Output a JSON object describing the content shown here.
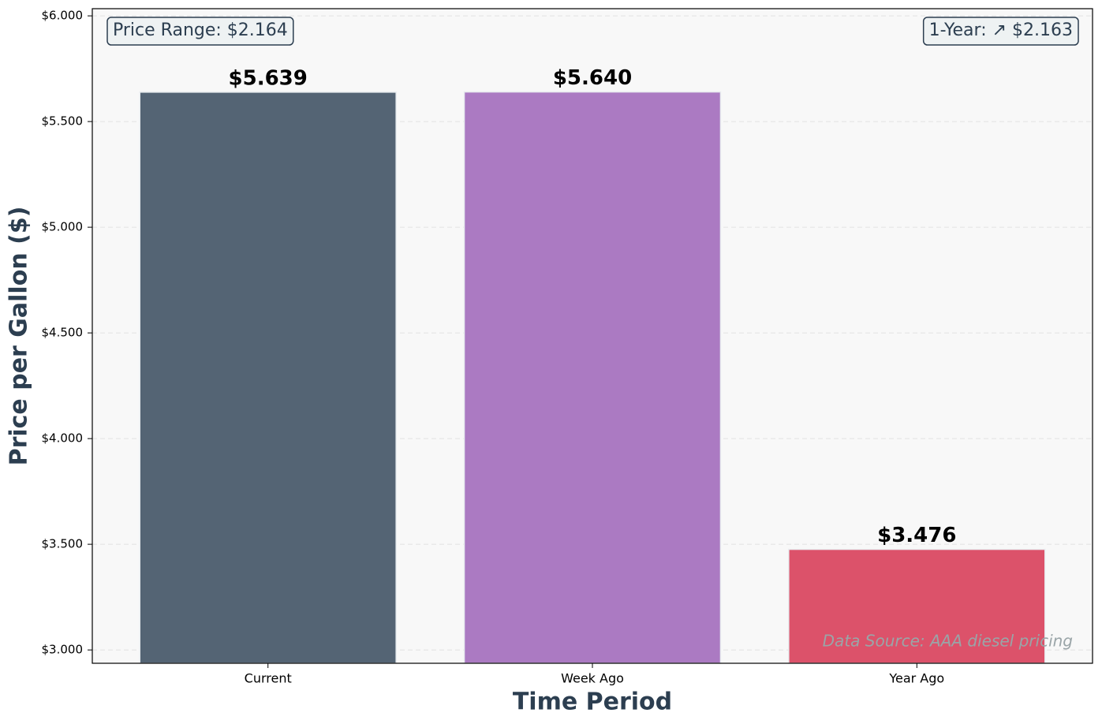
{
  "chart_data": {
    "type": "bar",
    "categories": [
      "Current",
      "Week Ago",
      "Year Ago"
    ],
    "values": [
      5.639,
      5.64,
      3.476
    ],
    "value_labels": [
      "$5.639",
      "$5.640",
      "$3.476"
    ],
    "colors": [
      "#546474",
      "#ab7ac2",
      "#dc526a"
    ],
    "xlabel": "Time Period",
    "ylabel": "Price per Gallon ($)",
    "ylim": [
      2.937,
      6.034
    ],
    "yticks": [
      {
        "value": 3,
        "label": "$3.000"
      },
      {
        "value": 3.5,
        "label": "$3.500"
      },
      {
        "value": 4,
        "label": "$4.000"
      },
      {
        "value": 4.5,
        "label": "$4.500"
      },
      {
        "value": 5,
        "label": "$5.000"
      },
      {
        "value": 5.5,
        "label": "$5.500"
      },
      {
        "value": 6,
        "label": "$6.000"
      }
    ],
    "grid": true,
    "annotations": [
      "Price Range: $2.164",
      "1-Year: ↗ $2.163",
      "Data Source: AAA diesel pricing"
    ]
  }
}
